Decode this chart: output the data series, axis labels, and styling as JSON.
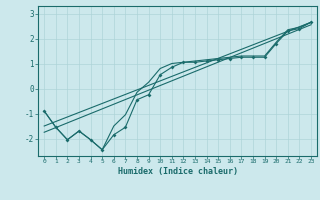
{
  "title": "",
  "xlabel": "Humidex (Indice chaleur)",
  "ylabel": "",
  "xlim": [
    -0.5,
    23.5
  ],
  "ylim": [
    -2.7,
    3.3
  ],
  "xticks": [
    0,
    1,
    2,
    3,
    4,
    5,
    6,
    7,
    8,
    9,
    10,
    11,
    12,
    13,
    14,
    15,
    16,
    17,
    18,
    19,
    20,
    21,
    22,
    23
  ],
  "yticks": [
    -2,
    -1,
    0,
    1,
    2,
    3
  ],
  "bg_color": "#cce8ec",
  "line_color": "#1a6b6b",
  "grid_color": "#aed4d8",
  "lines": [
    {
      "x": [
        0,
        1,
        2,
        3,
        4,
        5,
        6,
        7,
        8,
        9,
        10,
        11,
        12,
        13,
        14,
        15,
        16,
        17,
        18,
        19,
        20,
        21,
        22,
        23
      ],
      "y": [
        -0.9,
        -1.55,
        -2.05,
        -1.7,
        -2.05,
        -2.45,
        -1.85,
        -1.55,
        -0.45,
        -0.25,
        0.55,
        0.85,
        1.05,
        1.05,
        1.1,
        1.15,
        1.2,
        1.25,
        1.25,
        1.25,
        1.8,
        2.3,
        2.4,
        2.65
      ],
      "marker": true
    },
    {
      "x": [
        0,
        1,
        2,
        3,
        4,
        5,
        6,
        7,
        8,
        9,
        10,
        11,
        12,
        13,
        14,
        15,
        16,
        17,
        18,
        19,
        20,
        21,
        22,
        23
      ],
      "y": [
        -0.9,
        -1.55,
        -2.05,
        -1.7,
        -2.05,
        -2.45,
        -1.5,
        -1.05,
        -0.15,
        0.25,
        0.8,
        1.0,
        1.05,
        1.1,
        1.15,
        1.2,
        1.25,
        1.3,
        1.3,
        1.3,
        1.85,
        2.35,
        2.45,
        2.65
      ],
      "marker": false
    },
    {
      "x": [
        0,
        23
      ],
      "y": [
        -1.75,
        2.55
      ],
      "marker": false
    },
    {
      "x": [
        0,
        23
      ],
      "y": [
        -1.5,
        2.65
      ],
      "marker": false
    }
  ]
}
